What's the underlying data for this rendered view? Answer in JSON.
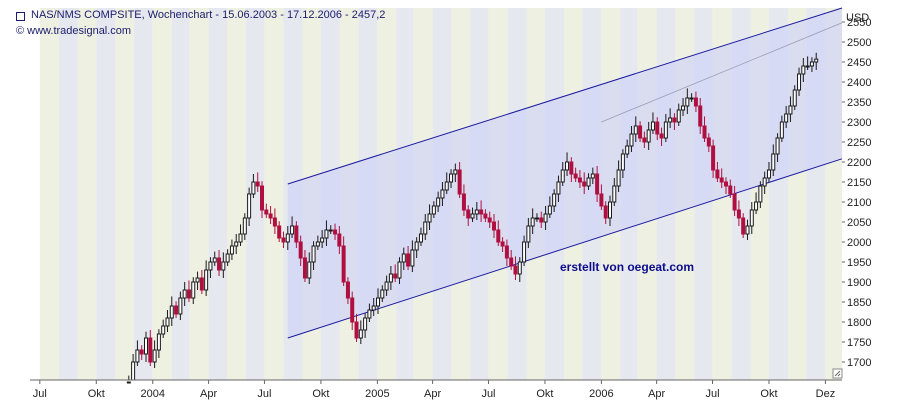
{
  "header": {
    "title": "NAS/NMS COMPSITE, Wochenchart - 15.06.2003 - 17.12.2006 - 2457,2",
    "source": "© www.tradesignal.com"
  },
  "watermark": "erstellt von oegeat.com",
  "colors": {
    "band_light": "#eef0e2",
    "band_alt": "#e6e8ef",
    "channel_fill": "#cfd3f6",
    "channel_line": "#1a1aa0",
    "candle_up": "#1a1a1a",
    "candle_down": "#b01040",
    "watermark": "#0c0c8c"
  },
  "chart_data": {
    "type": "candlestick",
    "title": "NAS/NMS COMPSITE, Wochenchart - 15.06.2003 - 17.12.2006 - 2457,2",
    "ylabel": "USD",
    "ylim": [
      1655,
      2585
    ],
    "y_ticks": [
      1700,
      1750,
      1800,
      1850,
      1900,
      1950,
      2000,
      2050,
      2100,
      2150,
      2200,
      2250,
      2300,
      2350,
      2400,
      2450,
      2500,
      2550
    ],
    "x_range": [
      "2003-06-15",
      "2007-01-28"
    ],
    "x_ticks": [
      {
        "date": "2003-07-01",
        "label": "Jul"
      },
      {
        "date": "2003-10-01",
        "label": "Okt"
      },
      {
        "date": "2004-01-01",
        "label": "2004"
      },
      {
        "date": "2004-04-01",
        "label": "Apr"
      },
      {
        "date": "2004-07-01",
        "label": "Jul"
      },
      {
        "date": "2004-10-01",
        "label": "Okt"
      },
      {
        "date": "2005-01-01",
        "label": "2005"
      },
      {
        "date": "2005-04-01",
        "label": "Apr"
      },
      {
        "date": "2005-07-01",
        "label": "Jul"
      },
      {
        "date": "2005-10-01",
        "label": "Okt"
      },
      {
        "date": "2006-01-01",
        "label": "2006"
      },
      {
        "date": "2006-04-01",
        "label": "Apr"
      },
      {
        "date": "2006-07-01",
        "label": "Jul"
      },
      {
        "date": "2006-10-01",
        "label": "Okt"
      },
      {
        "date": "2007-01-01",
        "label": "Dez"
      }
    ],
    "closes": [
      1625,
      1650,
      1700,
      1730,
      1720,
      1760,
      1700,
      1730,
      1770,
      1790,
      1810,
      1840,
      1820,
      1860,
      1880,
      1860,
      1900,
      1910,
      1880,
      1930,
      1950,
      1960,
      1930,
      1950,
      1970,
      1990,
      2000,
      2020,
      2060,
      2120,
      2150,
      2140,
      2080,
      2070,
      2060,
      2040,
      2010,
      2000,
      2020,
      2040,
      2000,
      1960,
      1910,
      1950,
      1990,
      2000,
      2010,
      2030,
      2030,
      2020,
      1990,
      1900,
      1860,
      1800,
      1760,
      1780,
      1810,
      1830,
      1840,
      1860,
      1880,
      1900,
      1920,
      1910,
      1950,
      1970,
      1940,
      1980,
      2000,
      2020,
      2050,
      2070,
      2090,
      2110,
      2130,
      2150,
      2170,
      2180,
      2120,
      2080,
      2060,
      2070,
      2080,
      2070,
      2060,
      2050,
      2030,
      2000,
      1990,
      1960,
      1940,
      1920,
      1950,
      2000,
      2040,
      2060,
      2060,
      2050,
      2070,
      2090,
      2120,
      2150,
      2180,
      2200,
      2170,
      2160,
      2150,
      2140,
      2160,
      2170,
      2120,
      2090,
      2060,
      2100,
      2140,
      2180,
      2220,
      2240,
      2270,
      2290,
      2260,
      2250,
      2280,
      2300,
      2270,
      2260,
      2300,
      2310,
      2300,
      2330,
      2340,
      2360,
      2360,
      2340,
      2290,
      2260,
      2240,
      2180,
      2160,
      2150,
      2140,
      2120,
      2080,
      2060,
      2020,
      2040,
      2080,
      2100,
      2140,
      2160,
      2180,
      2220,
      2260,
      2300,
      2320,
      2340,
      2380,
      2420,
      2440,
      2440,
      2450,
      2457.2
    ],
    "channel": {
      "upper": [
        {
          "date": "2004-08-08",
          "value": 2145
        },
        {
          "date": "2007-01-28",
          "value": 2585
        }
      ],
      "lower": [
        {
          "date": "2004-08-08",
          "value": 1760
        },
        {
          "date": "2007-01-28",
          "value": 2208
        }
      ],
      "mid": [
        {
          "date": "2006-01-01",
          "value": 2300
        },
        {
          "date": "2007-01-28",
          "value": 2548
        }
      ]
    },
    "grid": false,
    "legend": "none"
  }
}
